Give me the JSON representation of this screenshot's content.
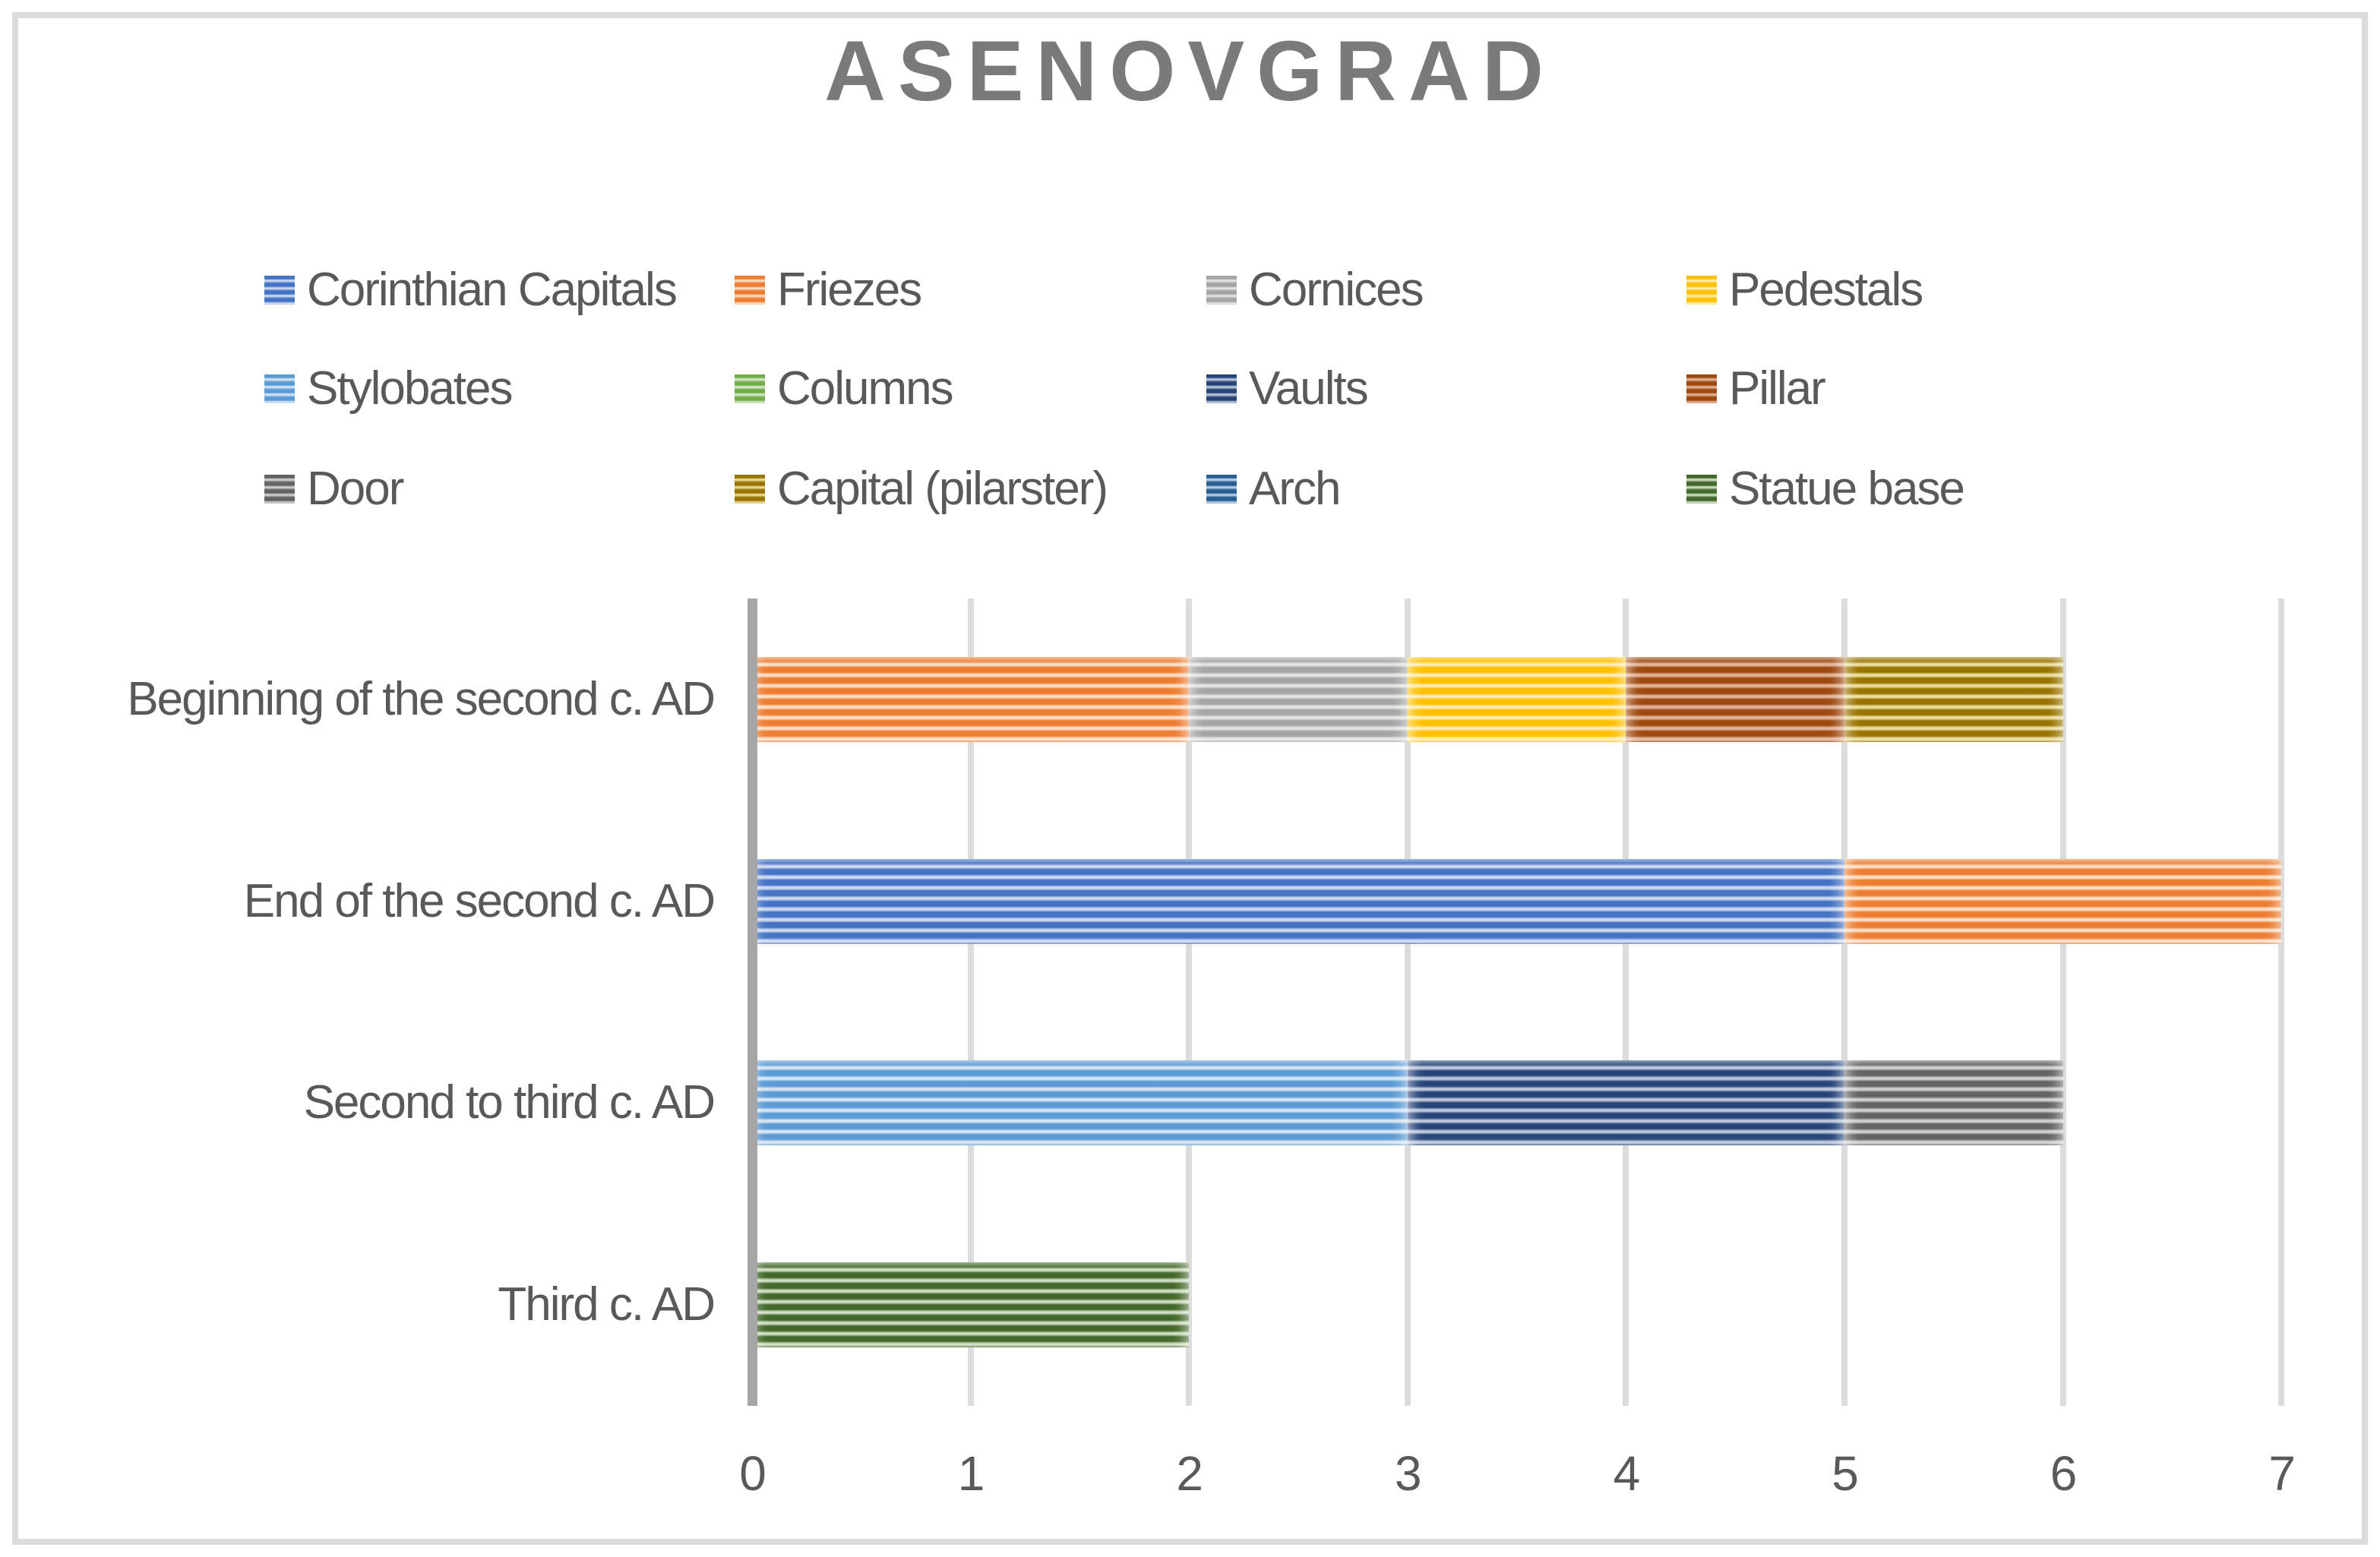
{
  "title": "ASENOVGRAD",
  "chart_data": {
    "type": "bar",
    "orientation": "horizontal-stacked",
    "pattern_fill": "light-horizontal-stripes",
    "title": "ASENOVGRAD",
    "categories": [
      "Beginning of the second c. AD",
      "End of the second c. AD",
      "Second to third c. AD",
      "Third c. AD"
    ],
    "series": [
      {
        "name": "Corinthian Capitals",
        "color": "#4472C4",
        "tint": "#CFD9F0",
        "values": [
          0,
          5,
          0,
          0
        ]
      },
      {
        "name": "Friezes",
        "color": "#ED7D31",
        "tint": "#FADFC7",
        "values": [
          2,
          2,
          0,
          0
        ]
      },
      {
        "name": "Cornices",
        "color": "#A5A5A5",
        "tint": "#E4E4E4",
        "values": [
          1,
          0,
          0,
          0
        ]
      },
      {
        "name": "Pedestals",
        "color": "#FFC000",
        "tint": "#FEEBB5",
        "values": [
          1,
          0,
          0,
          0
        ]
      },
      {
        "name": "Stylobates",
        "color": "#5B9BD5",
        "tint": "#D7E5F4",
        "values": [
          0,
          0,
          3,
          0
        ]
      },
      {
        "name": "Columns",
        "color": "#70AD47",
        "tint": "#D9E8CC",
        "values": [
          0,
          0,
          0,
          0
        ]
      },
      {
        "name": "Vaults",
        "color": "#264478",
        "tint": "#BDC8DC",
        "values": [
          0,
          0,
          2,
          0
        ]
      },
      {
        "name": "Pillar",
        "color": "#9E480E",
        "tint": "#E3B69B",
        "values": [
          1,
          0,
          0,
          0
        ]
      },
      {
        "name": "Door",
        "color": "#636363",
        "tint": "#D0D0D0",
        "values": [
          0,
          0,
          1,
          0
        ]
      },
      {
        "name": "Capital (pilarster)",
        "color": "#997300",
        "tint": "#ECDF9E",
        "values": [
          1,
          0,
          0,
          0
        ]
      },
      {
        "name": "Arch",
        "color": "#255E91",
        "tint": "#BDD0E2",
        "values": [
          0,
          0,
          0,
          0
        ]
      },
      {
        "name": "Statue base",
        "color": "#43682B",
        "tint": "#CFDDC2",
        "values": [
          0,
          0,
          0,
          2
        ]
      }
    ],
    "xticks": [
      0,
      1,
      2,
      3,
      4,
      5,
      6,
      7
    ],
    "xlim": [
      0,
      7
    ],
    "legend_position": "top",
    "legend_columns": 4,
    "grid": "vertical",
    "title_color": "#7A7A7A",
    "text_color": "#595959",
    "gridline_color": "#DCDCDC",
    "axis_line_color": "#A6A6A6"
  }
}
